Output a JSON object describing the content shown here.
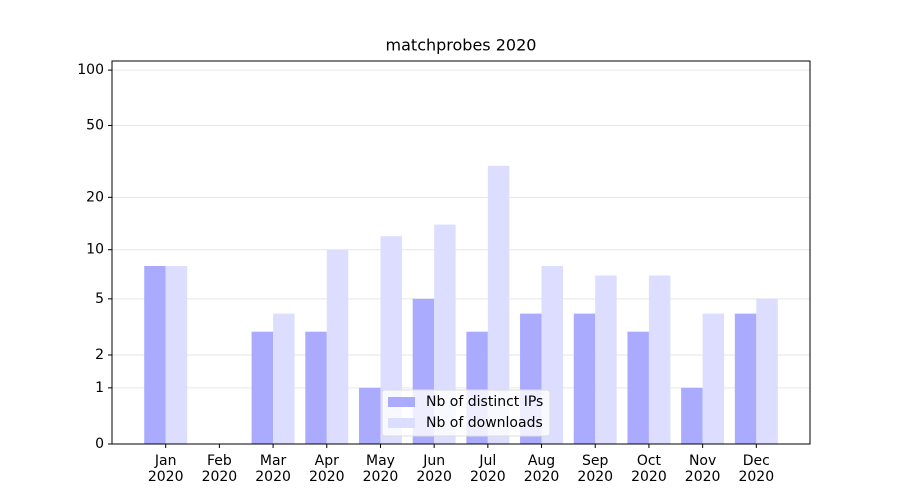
{
  "chart_data": {
    "type": "bar",
    "title": "matchprobes 2020",
    "categories": [
      "Jan\n2020",
      "Feb\n2020",
      "Mar\n2020",
      "Apr\n2020",
      "May\n2020",
      "Jun\n2020",
      "Jul\n2020",
      "Aug\n2020",
      "Sep\n2020",
      "Oct\n2020",
      "Nov\n2020",
      "Dec\n2020"
    ],
    "series": [
      {
        "name": "Nb of distinct IPs",
        "color": "#aaaaff",
        "values": [
          8,
          0,
          3,
          3,
          1,
          5,
          3,
          4,
          4,
          3,
          1,
          4
        ]
      },
      {
        "name": "Nb of downloads",
        "color": "#ddddff",
        "values": [
          8,
          0,
          4,
          10,
          12,
          14,
          30,
          8,
          7,
          7,
          4,
          5
        ]
      }
    ],
    "yscale": "symlog",
    "ylim": [
      0,
      112
    ],
    "yticks": [
      0,
      1,
      2,
      5,
      10,
      20,
      50,
      100
    ],
    "grid": true,
    "legend": "lower center"
  }
}
